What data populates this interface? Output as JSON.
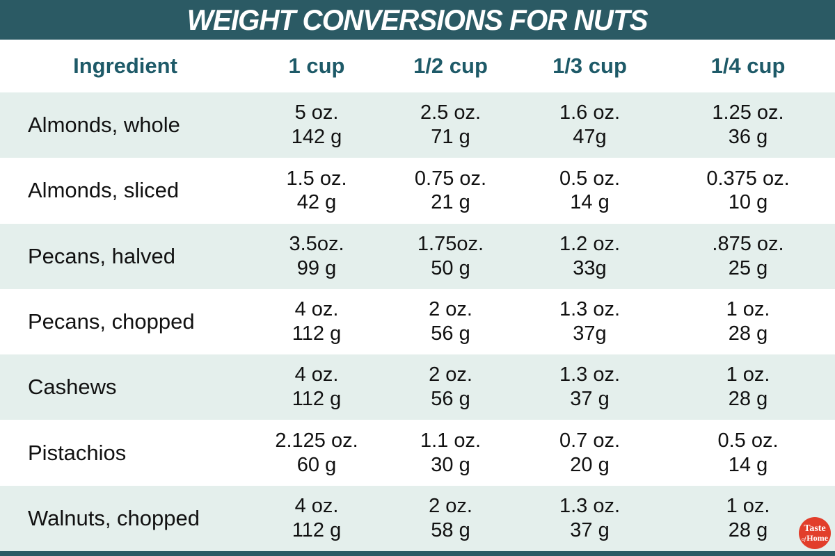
{
  "header": {
    "title": "WEIGHT CONVERSIONS FOR NUTS"
  },
  "table": {
    "columns": [
      "Ingredient",
      "1 cup",
      "1/2 cup",
      "1/3 cup",
      "1/4 cup"
    ],
    "rows": [
      {
        "ingredient": "Almonds, whole",
        "cells": [
          [
            "5 oz.",
            "142 g"
          ],
          [
            "2.5 oz.",
            "71 g"
          ],
          [
            "1.6 oz.",
            "47g"
          ],
          [
            "1.25 oz.",
            "36 g"
          ]
        ]
      },
      {
        "ingredient": "Almonds, sliced",
        "cells": [
          [
            "1.5 oz.",
            "42 g"
          ],
          [
            "0.75 oz.",
            "21 g"
          ],
          [
            "0.5 oz.",
            "14 g"
          ],
          [
            "0.375 oz.",
            "10 g"
          ]
        ]
      },
      {
        "ingredient": "Pecans, halved",
        "cells": [
          [
            "3.5oz.",
            "99 g"
          ],
          [
            "1.75oz.",
            "50 g"
          ],
          [
            "1.2 oz.",
            "33g"
          ],
          [
            ".875 oz.",
            "25 g"
          ]
        ]
      },
      {
        "ingredient": "Pecans, chopped",
        "cells": [
          [
            "4 oz.",
            "112 g"
          ],
          [
            "2 oz.",
            "56 g"
          ],
          [
            "1.3 oz.",
            "37g"
          ],
          [
            "1 oz.",
            "28 g"
          ]
        ]
      },
      {
        "ingredient": "Cashews",
        "cells": [
          [
            "4 oz.",
            "112 g"
          ],
          [
            "2 oz.",
            "56 g"
          ],
          [
            "1.3 oz.",
            "37 g"
          ],
          [
            "1 oz.",
            "28 g"
          ]
        ]
      },
      {
        "ingredient": "Pistachios",
        "cells": [
          [
            "2.125 oz.",
            "60 g"
          ],
          [
            "1.1 oz.",
            "30 g"
          ],
          [
            "0.7 oz.",
            "20 g"
          ],
          [
            "0.5 oz.",
            "14 g"
          ]
        ]
      },
      {
        "ingredient": "Walnuts, chopped",
        "cells": [
          [
            "4 oz.",
            "112 g"
          ],
          [
            "2 oz.",
            "58 g"
          ],
          [
            "1.3 oz.",
            "37 g"
          ],
          [
            "1 oz.",
            "28 g"
          ]
        ]
      }
    ]
  },
  "logo": {
    "word1": "Taste",
    "word2": "of",
    "word3": "Home"
  },
  "colors": {
    "teal_bar": "#2b5a64",
    "column_header_text": "#1e5a68",
    "row_alt_bg": "#e4efec",
    "row_bg": "#ffffff",
    "body_text": "#111111",
    "logo_red": "#e23e2b",
    "title_text": "#ffffff"
  },
  "chart_data": {
    "type": "table",
    "title": "WEIGHT CONVERSIONS FOR NUTS",
    "columns": [
      "Ingredient",
      "1 cup",
      "1/2 cup",
      "1/3 cup",
      "1/4 cup"
    ],
    "rows": [
      [
        "Almonds, whole",
        "5 oz. / 142 g",
        "2.5 oz. / 71 g",
        "1.6 oz. / 47g",
        "1.25 oz. / 36 g"
      ],
      [
        "Almonds, sliced",
        "1.5 oz. / 42 g",
        "0.75 oz. / 21 g",
        "0.5 oz. / 14 g",
        "0.375 oz. / 10 g"
      ],
      [
        "Pecans, halved",
        "3.5oz. / 99 g",
        "1.75oz. / 50 g",
        "1.2 oz. / 33g",
        ".875 oz. / 25 g"
      ],
      [
        "Pecans, chopped",
        "4 oz. / 112 g",
        "2 oz. / 56 g",
        "1.3 oz. / 37g",
        "1 oz. / 28 g"
      ],
      [
        "Cashews",
        "4 oz. / 112 g",
        "2 oz. / 56 g",
        "1.3 oz. / 37 g",
        "1 oz. / 28 g"
      ],
      [
        "Pistachios",
        "2.125 oz. / 60 g",
        "1.1 oz. / 30 g",
        "0.7 oz. / 20 g",
        "0.5 oz. / 14 g"
      ],
      [
        "Walnuts, chopped",
        "4 oz. / 112 g",
        "2 oz. / 58 g",
        "1.3 oz. / 37 g",
        "1 oz. / 28 g"
      ]
    ]
  }
}
